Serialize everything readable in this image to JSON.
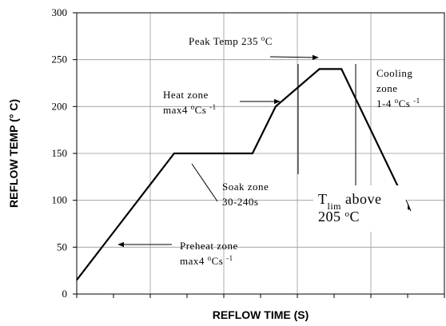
{
  "chart_data": {
    "type": "line",
    "xlabel": "REFLOW TIME (S)",
    "ylabel": "REFLOW TEMP (° C)",
    "x": [
      0,
      2.65,
      4.78,
      5.41,
      6.6,
      7.2,
      9.04
    ],
    "values": [
      15,
      150,
      150,
      200,
      240,
      240,
      90
    ],
    "color": "#000000",
    "xlim": [
      0,
      10
    ],
    "xticks": [
      0,
      1,
      2,
      3,
      4,
      5,
      6,
      7,
      8,
      9,
      10
    ],
    "xgrid": [
      0,
      2,
      4,
      6,
      8,
      10
    ],
    "ylim": [
      0,
      300
    ],
    "yticks": [
      0,
      50,
      100,
      150,
      200,
      250,
      300
    ],
    "grid": true,
    "annotations": [
      {
        "lines": [
          [
            {
              "text": "Peak Temp 235 "
            },
            {
              "text": "o",
              "style": "sup"
            },
            {
              "text": "C"
            }
          ]
        ]
      },
      {
        "lines": [
          [
            {
              "text": "Heat zone"
            }
          ],
          [
            {
              "text": "max4 "
            },
            {
              "text": "o",
              "style": "sup"
            },
            {
              "text": "Cs "
            },
            {
              "text": "-1",
              "style": "sup"
            }
          ]
        ]
      },
      {
        "lines": [
          [
            {
              "text": "Cooling"
            }
          ],
          [
            {
              "text": "zone"
            }
          ],
          [
            {
              "text": "1-4 "
            },
            {
              "text": "o",
              "style": "sup"
            },
            {
              "text": "Cs "
            },
            {
              "text": "-1",
              "style": "sup"
            }
          ]
        ]
      },
      {
        "lines": [
          [
            {
              "text": "Soak zone"
            }
          ],
          [
            {
              "text": "30-240s"
            }
          ]
        ]
      },
      {
        "lines": [
          [
            {
              "text": "T"
            },
            {
              "text": "lim",
              "style": "sub"
            },
            {
              "text": " above"
            }
          ],
          [
            {
              "text": "205 "
            },
            {
              "text": "o",
              "style": "sup"
            },
            {
              "text": "C"
            }
          ]
        ]
      },
      {
        "lines": [
          [
            {
              "text": "Preheat zone"
            }
          ],
          [
            {
              "text": "max4 "
            },
            {
              "text": "o",
              "style": "sup"
            },
            {
              "text": "Cs "
            },
            {
              "text": "-1",
              "style": "sup"
            }
          ]
        ]
      }
    ]
  }
}
